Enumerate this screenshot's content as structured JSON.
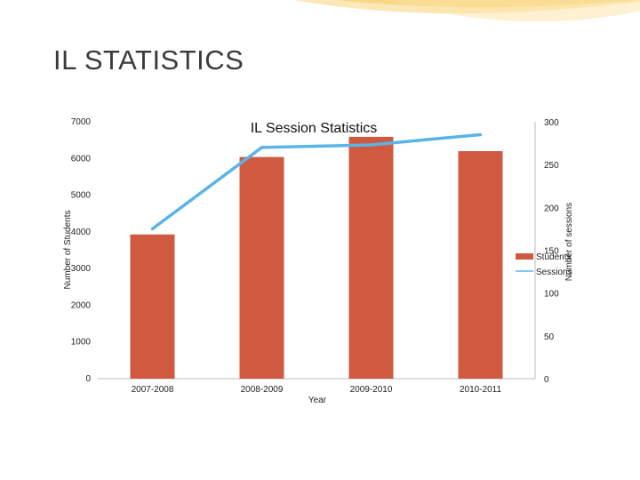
{
  "slide": {
    "title": "IL STATISTICS"
  },
  "colors": {
    "students": "#d05a40",
    "sessions": "#5ab4e6",
    "swoosh": "#f6c34a"
  },
  "chart_data": {
    "type": "bar",
    "title": "IL Session Statistics",
    "xlabel": "Year",
    "ylabel": "Number of Students",
    "y2label": "Number of sessions",
    "categories": [
      "2007-2008",
      "2008-2009",
      "2009-2010",
      "2010-2011"
    ],
    "ylim": [
      0,
      7000
    ],
    "y2lim": [
      0,
      300
    ],
    "yticks": [
      "0",
      "1000",
      "2000",
      "3000",
      "4000",
      "5000",
      "6000",
      "7000"
    ],
    "y2ticks": [
      "0",
      "50",
      "100",
      "150",
      "200",
      "250",
      "300"
    ],
    "series": [
      {
        "name": "Students",
        "type": "bar",
        "axis": "left",
        "values": [
          3930,
          6040,
          6590,
          6200
        ]
      },
      {
        "name": "Sessions",
        "type": "line",
        "axis": "right",
        "values": [
          175,
          270,
          273,
          285
        ]
      }
    ],
    "legend": "right",
    "grid": false
  }
}
